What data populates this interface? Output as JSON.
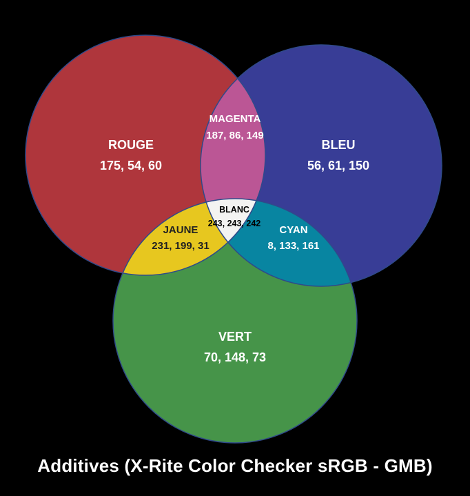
{
  "title": "Additives (X-Rite Color Checker sRGB - GMB)",
  "regions": {
    "rouge": {
      "name": "ROUGE",
      "value": "175, 54, 60",
      "color": "#AF363C"
    },
    "bleu": {
      "name": "BLEU",
      "value": "56, 61, 150",
      "color": "#383D96"
    },
    "vert": {
      "name": "VERT",
      "value": "70, 148, 73",
      "color": "#469449"
    },
    "magenta": {
      "name": "MAGENTA",
      "value": "187, 86, 149",
      "color": "#BB5695"
    },
    "jaune": {
      "name": "JAUNE",
      "value": "231, 199, 31",
      "color": "#E7C71F"
    },
    "cyan": {
      "name": "CYAN",
      "value": "8, 133, 161",
      "color": "#0885A1"
    },
    "blanc": {
      "name": "BLANC",
      "value": "243, 243, 242",
      "color": "#F3F3F2"
    }
  },
  "background_color": "#000000",
  "outline_color": "#2F4A8A"
}
